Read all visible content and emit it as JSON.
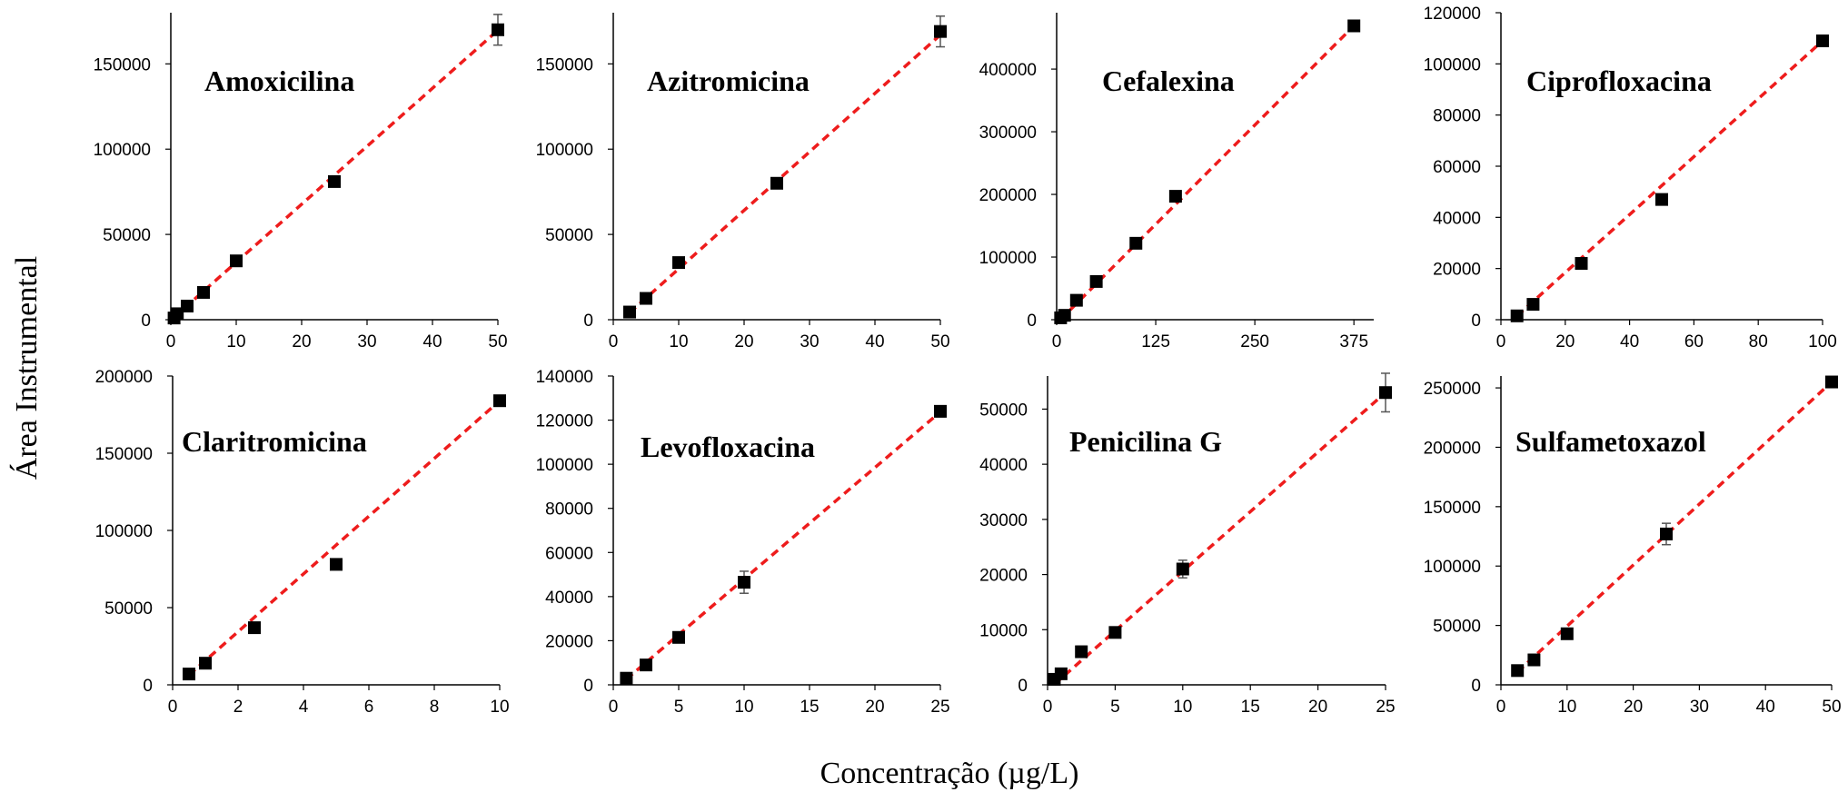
{
  "figure": {
    "ylabel": "Área Instrumental",
    "xlabel": "Concentração (µg/L)"
  },
  "colors": {
    "fit_line": "#ee1c1c",
    "marker": "#000000",
    "axis": "#000000"
  },
  "chart_data": [
    {
      "type": "scatter",
      "title": "Amoxicilina",
      "xlim": [
        0,
        50
      ],
      "ylim": [
        0,
        180000
      ],
      "xticks": [
        0,
        10,
        20,
        30,
        40,
        50
      ],
      "yticks": [
        0,
        50000,
        100000,
        150000
      ],
      "points": [
        {
          "x": 0.5,
          "y": 1000,
          "err": 0
        },
        {
          "x": 1,
          "y": 3500,
          "err": 0
        },
        {
          "x": 2.5,
          "y": 8000,
          "err": 0
        },
        {
          "x": 5,
          "y": 16000,
          "err": 0
        },
        {
          "x": 10,
          "y": 34500,
          "err": 0
        },
        {
          "x": 25,
          "y": 81000,
          "err": 0
        },
        {
          "x": 50,
          "y": 170000,
          "err": 9000
        }
      ],
      "fit": {
        "slope": 3400,
        "intercept": -300
      }
    },
    {
      "type": "scatter",
      "title": "Azitromicina",
      "xlim": [
        0,
        50
      ],
      "ylim": [
        0,
        180000
      ],
      "xticks": [
        0,
        10,
        20,
        30,
        40,
        50
      ],
      "yticks": [
        0,
        50000,
        100000,
        150000
      ],
      "points": [
        {
          "x": 2.5,
          "y": 4500,
          "err": 0
        },
        {
          "x": 5,
          "y": 12500,
          "err": 0
        },
        {
          "x": 10,
          "y": 33500,
          "err": 0
        },
        {
          "x": 25,
          "y": 80000,
          "err": 0
        },
        {
          "x": 50,
          "y": 169000,
          "err": 9000
        }
      ],
      "fit": {
        "slope": 3430,
        "intercept": -4500
      }
    },
    {
      "type": "scatter",
      "title": "Cefalexina",
      "xlim": [
        0,
        400
      ],
      "ylim": [
        0,
        490000
      ],
      "xticks": [
        0,
        125,
        250,
        375
      ],
      "yticks": [
        0,
        100000,
        200000,
        300000,
        400000
      ],
      "points": [
        {
          "x": 5,
          "y": 3000,
          "err": 0
        },
        {
          "x": 10,
          "y": 7000,
          "err": 0
        },
        {
          "x": 25,
          "y": 31000,
          "err": 0
        },
        {
          "x": 50,
          "y": 61000,
          "err": 0
        },
        {
          "x": 100,
          "y": 122000,
          "err": 0
        },
        {
          "x": 150,
          "y": 197000,
          "err": 0
        },
        {
          "x": 375,
          "y": 469000,
          "err": 0
        }
      ],
      "fit": {
        "slope": 1267,
        "intercept": -6000
      }
    },
    {
      "type": "scatter",
      "title": "Ciprofloxacina",
      "xlim": [
        0,
        100
      ],
      "ylim": [
        0,
        120000
      ],
      "xticks": [
        0,
        20,
        40,
        60,
        80,
        100
      ],
      "yticks": [
        0,
        20000,
        40000,
        60000,
        80000,
        100000,
        120000
      ],
      "points": [
        {
          "x": 5,
          "y": 1500,
          "err": 0
        },
        {
          "x": 10,
          "y": 6000,
          "err": 0
        },
        {
          "x": 25,
          "y": 22000,
          "err": 0
        },
        {
          "x": 50,
          "y": 47000,
          "err": 0
        },
        {
          "x": 100,
          "y": 109000,
          "err": 0
        }
      ],
      "fit": {
        "slope": 1132,
        "intercept": -4200
      }
    },
    {
      "type": "scatter",
      "title": "Claritromicina",
      "xlim": [
        0,
        10
      ],
      "ylim": [
        0,
        200000
      ],
      "xticks": [
        0,
        2,
        4,
        6,
        8,
        10
      ],
      "yticks": [
        0,
        50000,
        100000,
        150000,
        200000
      ],
      "points": [
        {
          "x": 0.5,
          "y": 7000,
          "err": 0
        },
        {
          "x": 1,
          "y": 14000,
          "err": 0
        },
        {
          "x": 2.5,
          "y": 37000,
          "err": 0
        },
        {
          "x": 5,
          "y": 78000,
          "err": 0
        },
        {
          "x": 10,
          "y": 184000,
          "err": 3000
        }
      ],
      "fit": {
        "slope": 18700,
        "intercept": -3000
      }
    },
    {
      "type": "scatter",
      "title": "Levofloxacina",
      "xlim": [
        0,
        25
      ],
      "ylim": [
        0,
        140000
      ],
      "xticks": [
        0,
        5,
        10,
        15,
        20,
        25
      ],
      "yticks": [
        0,
        20000,
        40000,
        60000,
        80000,
        100000,
        120000,
        140000
      ],
      "points": [
        {
          "x": 1,
          "y": 3000,
          "err": 0
        },
        {
          "x": 2.5,
          "y": 9000,
          "err": 0
        },
        {
          "x": 5,
          "y": 21500,
          "err": 0
        },
        {
          "x": 10,
          "y": 46500,
          "err": 5000
        },
        {
          "x": 25,
          "y": 124000,
          "err": 2500
        }
      ],
      "fit": {
        "slope": 5050,
        "intercept": -2500
      }
    },
    {
      "type": "scatter",
      "title": "Penicilina G",
      "xlim": [
        0,
        25
      ],
      "ylim": [
        0,
        56000
      ],
      "xticks": [
        0,
        5,
        10,
        15,
        20,
        25
      ],
      "yticks": [
        0,
        10000,
        20000,
        30000,
        40000,
        50000
      ],
      "points": [
        {
          "x": 0.5,
          "y": 1000,
          "err": 0
        },
        {
          "x": 1,
          "y": 2000,
          "err": 0
        },
        {
          "x": 2.5,
          "y": 6000,
          "err": 1000
        },
        {
          "x": 5,
          "y": 9500,
          "err": 0
        },
        {
          "x": 10,
          "y": 21000,
          "err": 1600
        },
        {
          "x": 25,
          "y": 53000,
          "err": 3500
        }
      ],
      "fit": {
        "slope": 2160,
        "intercept": -1000
      }
    },
    {
      "type": "scatter",
      "title": "Sulfametoxazol",
      "xlim": [
        0,
        50
      ],
      "ylim": [
        0,
        260000
      ],
      "xticks": [
        0,
        10,
        20,
        30,
        40,
        50
      ],
      "yticks": [
        0,
        50000,
        100000,
        150000,
        200000,
        250000
      ],
      "points": [
        {
          "x": 2.5,
          "y": 12000,
          "err": 0
        },
        {
          "x": 5,
          "y": 21000,
          "err": 0
        },
        {
          "x": 10,
          "y": 43000,
          "err": 0
        },
        {
          "x": 25,
          "y": 127000,
          "err": 9000
        },
        {
          "x": 50,
          "y": 255000,
          "err": 0
        }
      ],
      "fit": {
        "slope": 5140,
        "intercept": -2000
      }
    }
  ]
}
